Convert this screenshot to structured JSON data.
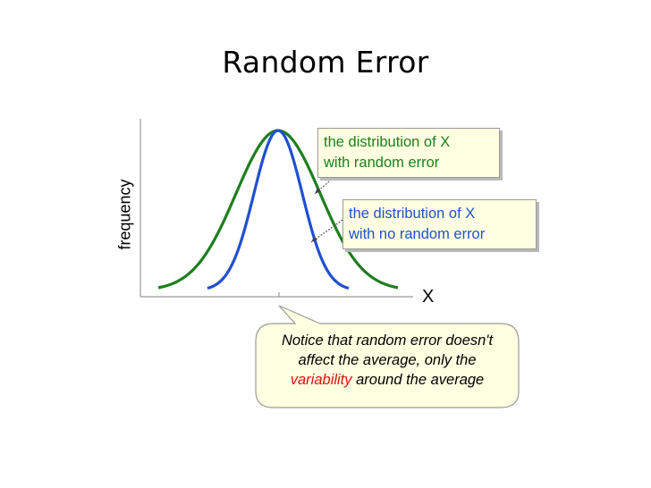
{
  "slide": {
    "title": "Random Error"
  },
  "figure": {
    "ylabel": "frequency",
    "xlabel": "X",
    "green_callout": {
      "line1": "the distribution of X",
      "line2": "with random error",
      "color": "#1e7e1e"
    },
    "blue_callout": {
      "line1": "the distribution of X",
      "line2": "with no random error",
      "color": "#1f4fd0"
    },
    "curve_colors": {
      "random_error": "#1e7e1e",
      "no_random_error": "#1f4fd0"
    }
  },
  "note": {
    "line1": "Notice that random error doesn't",
    "line2": "affect the average, only the",
    "highlight": "variability",
    "line3_rest": " around the average",
    "highlight_color": "#e01010",
    "background": "#ffffe1"
  }
}
